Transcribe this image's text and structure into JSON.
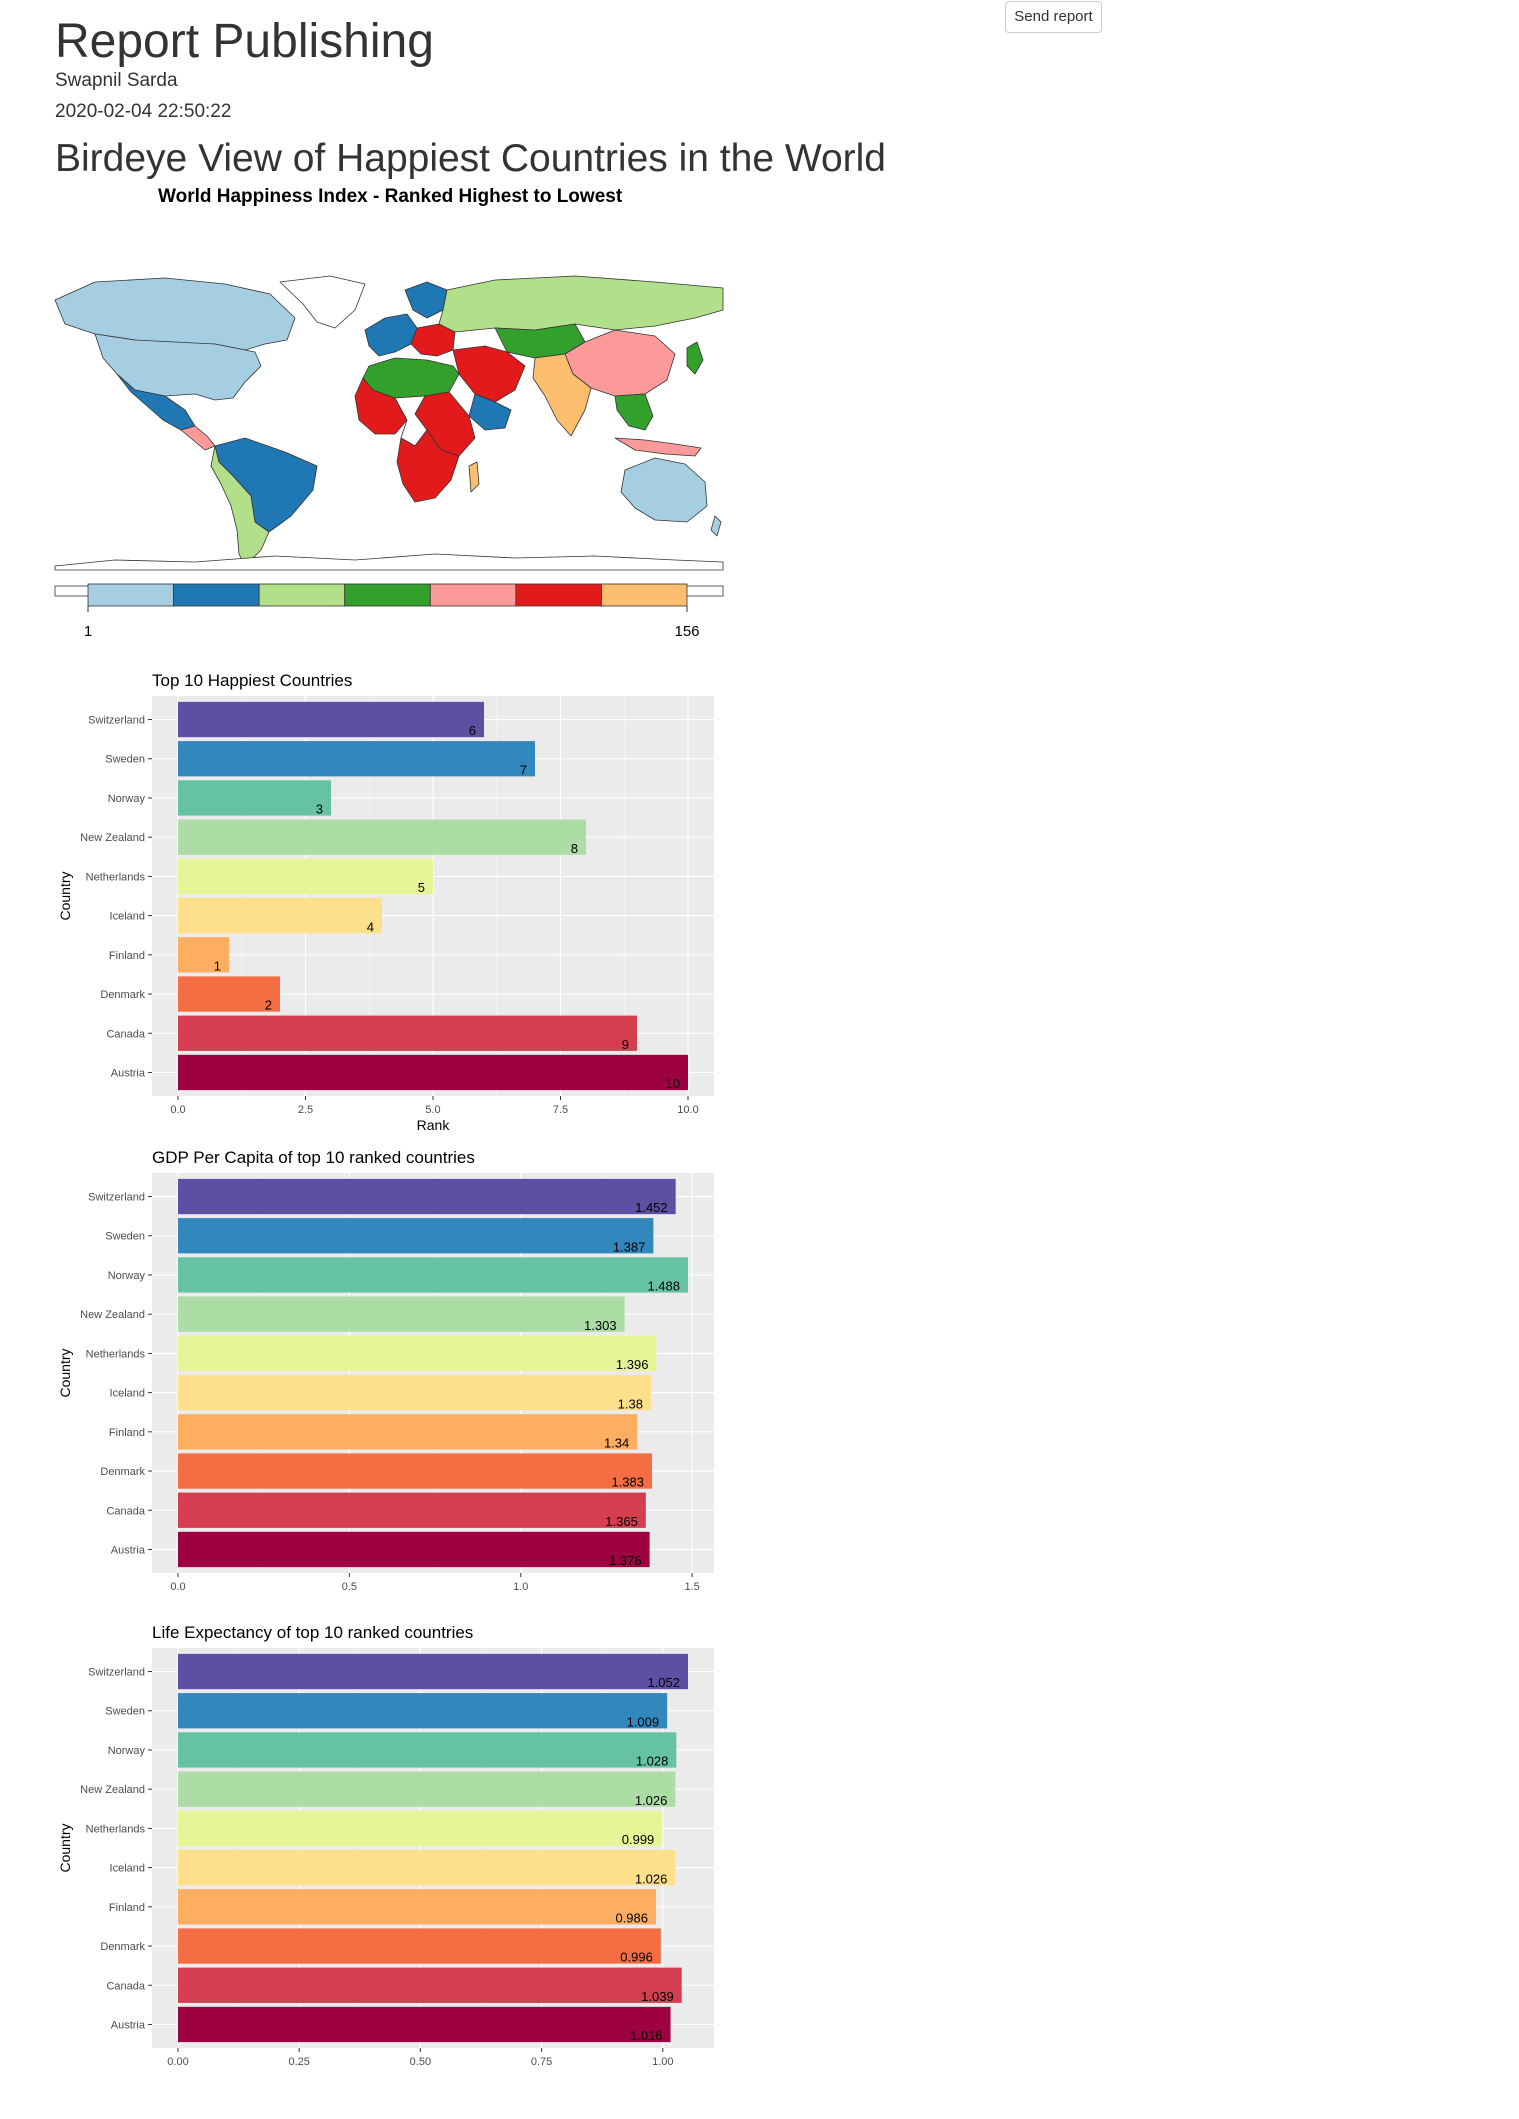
{
  "report": {
    "title": "Report Publishing",
    "author": "Swapnil Sarda",
    "date": "2020-02-04 22:50:22",
    "send_button_label": "Send report",
    "section_title": "Birdeye View of Happiest Countries in the World"
  },
  "map": {
    "title": "World Happiness Index - Ranked Highest to Lowest",
    "legend_min": "1",
    "legend_max": "156",
    "legend_colors": [
      "#a6cee3",
      "#1f78b4",
      "#b2df8a",
      "#33a02c",
      "#fb9a99",
      "#e31a1c",
      "#fdbf6f"
    ]
  },
  "chart_data": [
    {
      "type": "bar",
      "orientation": "horizontal",
      "title": "Top 10 Happiest Countries",
      "xlabel": "Rank",
      "ylabel": "Country",
      "categories": [
        "Switzerland",
        "Sweden",
        "Norway",
        "New Zealand",
        "Netherlands",
        "Iceland",
        "Finland",
        "Denmark",
        "Canada",
        "Austria"
      ],
      "values": [
        6,
        7,
        3,
        8,
        5,
        4,
        1,
        2,
        9,
        10
      ],
      "labels": [
        "6",
        "7",
        "3",
        "8",
        "5",
        "4",
        "1",
        "2",
        "9",
        "10"
      ],
      "xlim": [
        0,
        10
      ],
      "xticks": [
        "0.0",
        "2.5",
        "5.0",
        "7.5",
        "10.0"
      ],
      "xtick_values": [
        0,
        2.5,
        5,
        7.5,
        10
      ],
      "colors": [
        "#5e4fa2",
        "#3288bd",
        "#66c2a5",
        "#abdda4",
        "#e6f598",
        "#fee08b",
        "#fdae61",
        "#f46d43",
        "#d53e4f",
        "#9e0142"
      ],
      "grid": true
    },
    {
      "type": "bar",
      "orientation": "horizontal",
      "title": "GDP Per Capita of top 10 ranked countries",
      "xlabel": "",
      "ylabel": "Country",
      "categories": [
        "Switzerland",
        "Sweden",
        "Norway",
        "New Zealand",
        "Netherlands",
        "Iceland",
        "Finland",
        "Denmark",
        "Canada",
        "Austria"
      ],
      "values": [
        1.452,
        1.387,
        1.488,
        1.303,
        1.396,
        1.38,
        1.34,
        1.383,
        1.365,
        1.376
      ],
      "labels": [
        "1.452",
        "1.387",
        "1.488",
        "1.303",
        "1.396",
        "1.38",
        "1.34",
        "1.383",
        "1.365",
        "1.376"
      ],
      "xlim": [
        0,
        1.488
      ],
      "xticks": [
        "0.0",
        "0.5",
        "1.0",
        "1.5"
      ],
      "xtick_values": [
        0,
        0.5,
        1,
        1.5
      ],
      "colors": [
        "#5e4fa2",
        "#3288bd",
        "#66c2a5",
        "#abdda4",
        "#e6f598",
        "#fee08b",
        "#fdae61",
        "#f46d43",
        "#d53e4f",
        "#9e0142"
      ],
      "grid": true
    },
    {
      "type": "bar",
      "orientation": "horizontal",
      "title": "Life Expectancy of top 10 ranked countries",
      "xlabel": "",
      "ylabel": "Country",
      "categories": [
        "Switzerland",
        "Sweden",
        "Norway",
        "New Zealand",
        "Netherlands",
        "Iceland",
        "Finland",
        "Denmark",
        "Canada",
        "Austria"
      ],
      "values": [
        1.052,
        1.009,
        1.028,
        1.026,
        0.999,
        1.026,
        0.986,
        0.996,
        1.039,
        1.016
      ],
      "labels": [
        "1.052",
        "1.009",
        "1.028",
        "1.026",
        "0.999",
        "1.026",
        "0.986",
        "0.996",
        "1.039",
        "1.016"
      ],
      "xlim": [
        0,
        1.052
      ],
      "xticks": [
        "0.00",
        "0.25",
        "0.50",
        "0.75",
        "1.00"
      ],
      "xtick_values": [
        0,
        0.25,
        0.5,
        0.75,
        1
      ],
      "colors": [
        "#5e4fa2",
        "#3288bd",
        "#66c2a5",
        "#abdda4",
        "#e6f598",
        "#fee08b",
        "#fdae61",
        "#f46d43",
        "#d53e4f",
        "#9e0142"
      ],
      "grid": true
    }
  ]
}
